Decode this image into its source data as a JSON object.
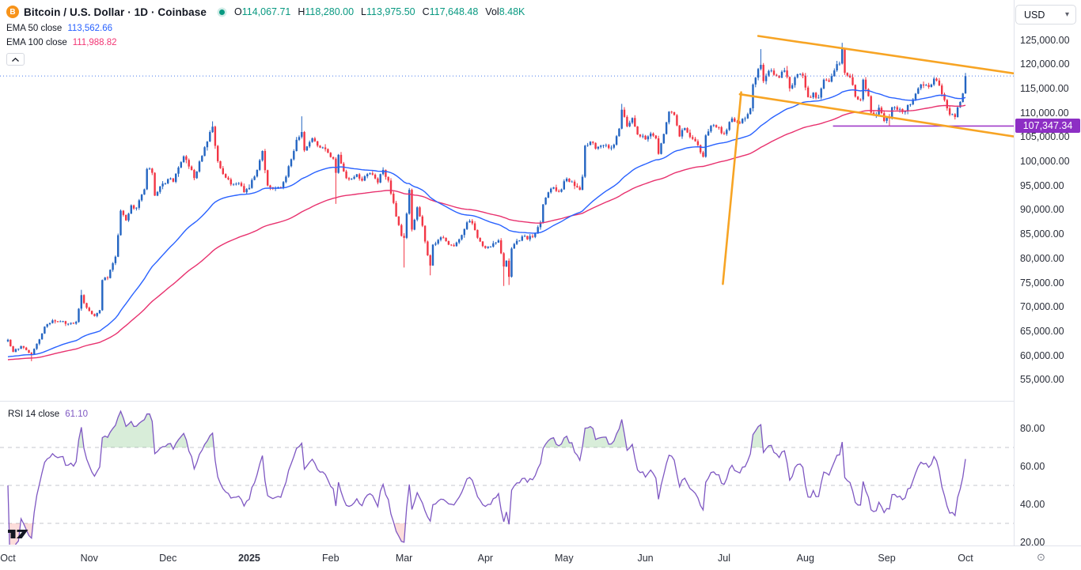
{
  "header": {
    "symbol_icon": "bitcoin-icon",
    "symbol_icon_letter": "B",
    "symbol_title": "Bitcoin / U.S. Dollar · 1D · Coinbase",
    "ohlc": {
      "o_label": "O",
      "o": "114,067.71",
      "h_label": "H",
      "h": "118,280.00",
      "l_label": "L",
      "l": "113,975.50",
      "c_label": "C",
      "c": "117,648.48",
      "vol_label": "Vol",
      "vol": "8.48K"
    },
    "currency": "USD"
  },
  "indicators_legend": {
    "ema50": {
      "label": "EMA 50 close",
      "value": "113,562.66"
    },
    "ema100": {
      "label": "EMA 100 close",
      "value": "111,988.82"
    },
    "rsi": {
      "label": "RSI 14 close",
      "value": "61.10"
    }
  },
  "chart_data": {
    "type": "candlestick",
    "title": "Bitcoin / U.S. Dollar",
    "exchange": "Coinbase",
    "timeframe": "1D",
    "x_start": "2024-10-01",
    "x_end": "2025-10-01",
    "price_axis": {
      "ticks": [
        125000,
        120000,
        115000,
        110000,
        105000,
        100000,
        95000,
        90000,
        85000,
        80000,
        75000,
        70000,
        65000,
        60000,
        55000
      ],
      "visible_range": [
        51000,
        126500
      ]
    },
    "time_axis": {
      "months": [
        {
          "label": "Oct",
          "day": 0
        },
        {
          "label": "Nov",
          "day": 31
        },
        {
          "label": "Dec",
          "day": 61
        },
        {
          "label": "2025",
          "day": 92,
          "bold": true
        },
        {
          "label": "Feb",
          "day": 123
        },
        {
          "label": "Mar",
          "day": 151
        },
        {
          "label": "Apr",
          "day": 182
        },
        {
          "label": "May",
          "day": 212
        },
        {
          "label": "Jun",
          "day": 243
        },
        {
          "label": "Jul",
          "day": 273
        },
        {
          "label": "Aug",
          "day": 304
        },
        {
          "label": "Sep",
          "day": 335
        },
        {
          "label": "Oct",
          "day": 365
        }
      ]
    },
    "last_candle": {
      "open": 114067.71,
      "high": 118280.0,
      "low": 113975.5,
      "close": 117648.48,
      "volume": "8.48K"
    },
    "price_keypoints": [
      [
        0,
        63300
      ],
      [
        2,
        60800
      ],
      [
        5,
        62000
      ],
      [
        9,
        60300
      ],
      [
        11,
        62500
      ],
      [
        14,
        66000
      ],
      [
        17,
        67300
      ],
      [
        20,
        67100
      ],
      [
        23,
        66600
      ],
      [
        26,
        67000
      ],
      [
        28,
        72500
      ],
      [
        30,
        69900
      ],
      [
        33,
        68200
      ],
      [
        35,
        69400
      ],
      [
        36,
        75600
      ],
      [
        38,
        76000
      ],
      [
        41,
        80400
      ],
      [
        43,
        89900
      ],
      [
        45,
        87900
      ],
      [
        47,
        91000
      ],
      [
        49,
        90500
      ],
      [
        52,
        94300
      ],
      [
        53,
        98500
      ],
      [
        55,
        97700
      ],
      [
        56,
        93000
      ],
      [
        58,
        94900
      ],
      [
        61,
        96400
      ],
      [
        63,
        95850
      ],
      [
        65,
        98800
      ],
      [
        67,
        101100
      ],
      [
        69,
        99000
      ],
      [
        71,
        96600
      ],
      [
        74,
        101200
      ],
      [
        77,
        106100
      ],
      [
        78,
        107200
      ],
      [
        80,
        100100
      ],
      [
        82,
        97460
      ],
      [
        85,
        95300
      ],
      [
        88,
        95600
      ],
      [
        90,
        93700
      ],
      [
        92,
        94600
      ],
      [
        95,
        98300
      ],
      [
        97,
        102200
      ],
      [
        99,
        95100
      ],
      [
        101,
        94400
      ],
      [
        104,
        94600
      ],
      [
        106,
        96900
      ],
      [
        108,
        100500
      ],
      [
        110,
        104500
      ],
      [
        112,
        106100
      ],
      [
        113,
        102300
      ],
      [
        116,
        104800
      ],
      [
        118,
        103300
      ],
      [
        121,
        102600
      ],
      [
        124,
        100600
      ],
      [
        125,
        97700
      ],
      [
        126,
        101400
      ],
      [
        129,
        96600
      ],
      [
        131,
        96500
      ],
      [
        133,
        97400
      ],
      [
        135,
        96100
      ],
      [
        138,
        97600
      ],
      [
        141,
        95700
      ],
      [
        143,
        98300
      ],
      [
        145,
        96100
      ],
      [
        147,
        91500
      ],
      [
        148,
        88700
      ],
      [
        150,
        84700
      ],
      [
        151,
        84300
      ],
      [
        153,
        94200
      ],
      [
        154,
        86000
      ],
      [
        156,
        90600
      ],
      [
        158,
        86800
      ],
      [
        160,
        80700
      ],
      [
        161,
        78600
      ],
      [
        162,
        82900
      ],
      [
        164,
        83900
      ],
      [
        166,
        84300
      ],
      [
        168,
        82900
      ],
      [
        170,
        82600
      ],
      [
        172,
        84000
      ],
      [
        174,
        86100
      ],
      [
        175,
        87500
      ],
      [
        177,
        87300
      ],
      [
        179,
        84300
      ],
      [
        181,
        82600
      ],
      [
        183,
        82500
      ],
      [
        185,
        83200
      ],
      [
        187,
        83800
      ],
      [
        189,
        78400
      ],
      [
        190,
        79600
      ],
      [
        191,
        76300
      ],
      [
        192,
        82100
      ],
      [
        194,
        83700
      ],
      [
        196,
        84600
      ],
      [
        198,
        84000
      ],
      [
        201,
        85200
      ],
      [
        203,
        87500
      ],
      [
        204,
        91200
      ],
      [
        206,
        93700
      ],
      [
        208,
        94700
      ],
      [
        210,
        93800
      ],
      [
        213,
        96500
      ],
      [
        215,
        95900
      ],
      [
        218,
        94200
      ],
      [
        219,
        96900
      ],
      [
        220,
        103300
      ],
      [
        222,
        104100
      ],
      [
        224,
        102700
      ],
      [
        227,
        103400
      ],
      [
        229,
        102800
      ],
      [
        231,
        103500
      ],
      [
        233,
        106800
      ],
      [
        234,
        110700
      ],
      [
        236,
        107300
      ],
      [
        238,
        109000
      ],
      [
        240,
        105600
      ],
      [
        243,
        104600
      ],
      [
        245,
        105800
      ],
      [
        247,
        104800
      ],
      [
        248,
        101600
      ],
      [
        250,
        105700
      ],
      [
        252,
        110300
      ],
      [
        254,
        109600
      ],
      [
        256,
        105200
      ],
      [
        258,
        106900
      ],
      [
        261,
        104700
      ],
      [
        263,
        103400
      ],
      [
        265,
        101000
      ],
      [
        266,
        105400
      ],
      [
        268,
        107400
      ],
      [
        271,
        107100
      ],
      [
        273,
        105700
      ],
      [
        276,
        108900
      ],
      [
        278,
        108100
      ],
      [
        281,
        108900
      ],
      [
        283,
        111000
      ],
      [
        284,
        115900
      ],
      [
        286,
        119100
      ],
      [
        287,
        119950
      ],
      [
        288,
        116600
      ],
      [
        290,
        118700
      ],
      [
        292,
        117900
      ],
      [
        294,
        117300
      ],
      [
        296,
        118800
      ],
      [
        298,
        115100
      ],
      [
        300,
        117400
      ],
      [
        301,
        118000
      ],
      [
        303,
        117700
      ],
      [
        305,
        113300
      ],
      [
        307,
        114200
      ],
      [
        309,
        113200
      ],
      [
        311,
        116900
      ],
      [
        313,
        116500
      ],
      [
        315,
        118800
      ],
      [
        317,
        120200
      ],
      [
        318,
        123300
      ],
      [
        319,
        118300
      ],
      [
        321,
        117400
      ],
      [
        323,
        113400
      ],
      [
        325,
        112800
      ],
      [
        326,
        116900
      ],
      [
        328,
        113500
      ],
      [
        329,
        110100
      ],
      [
        331,
        109700
      ],
      [
        332,
        111100
      ],
      [
        334,
        108400
      ],
      [
        336,
        108900
      ],
      [
        337,
        111200
      ],
      [
        339,
        110700
      ],
      [
        341,
        110200
      ],
      [
        344,
        111800
      ],
      [
        346,
        114000
      ],
      [
        348,
        115900
      ],
      [
        351,
        115400
      ],
      [
        353,
        117100
      ],
      [
        355,
        115700
      ],
      [
        357,
        112700
      ],
      [
        359,
        109700
      ],
      [
        361,
        109200
      ],
      [
        363,
        112300
      ],
      [
        364,
        114067.71
      ],
      [
        365,
        117648.48
      ]
    ],
    "wick_events": [
      {
        "d": 9,
        "lo": 58900
      },
      {
        "d": 28,
        "hi": 73600
      },
      {
        "d": 78,
        "hi": 108300
      },
      {
        "d": 112,
        "hi": 109350
      },
      {
        "d": 125,
        "lo": 91300
      },
      {
        "d": 151,
        "lo": 78200
      },
      {
        "d": 161,
        "lo": 76600
      },
      {
        "d": 189,
        "lo": 74400
      },
      {
        "d": 191,
        "lo": 74600
      },
      {
        "d": 234,
        "hi": 111900
      },
      {
        "d": 287,
        "hi": 123200
      },
      {
        "d": 318,
        "hi": 124500
      },
      {
        "d": 336,
        "lo": 107350
      },
      {
        "d": 361,
        "lo": 108700
      }
    ],
    "series": [
      {
        "name": "EMA 50",
        "kind": "ema",
        "period": 50,
        "color": "#2962ff",
        "last_value": 113562.66,
        "seed": 59800
      },
      {
        "name": "EMA 100",
        "kind": "ema",
        "period": 100,
        "color": "#e8316e",
        "last_value": 111988.82,
        "seed": 59200
      }
    ],
    "rsi": {
      "period": 14,
      "last_value": 61.1,
      "color": "#7e57c2",
      "axis_ticks": [
        80,
        60,
        40,
        20
      ],
      "dashed_levels": [
        70,
        50,
        30
      ],
      "overbought_fill": "rgba(76,175,80,0.22)",
      "oversold_fill": "rgba(244,67,54,0.18)",
      "range": [
        15,
        88
      ]
    },
    "overlays": {
      "trendlines": [
        {
          "name": "channel-upper",
          "d1": 286,
          "p1": 125900,
          "d2": 385,
          "p2": 118200
        },
        {
          "name": "channel-lower",
          "d1": 279,
          "p1": 113900,
          "d2": 385,
          "p2": 105200
        },
        {
          "name": "impulse-line",
          "d1": 272.5,
          "p1": 74800,
          "d2": 279.5,
          "p2": 114300
        }
      ],
      "trendline_color": "#f7a424",
      "horizontal_line": {
        "price": 107347.34,
        "label": "107,347.34",
        "start_day": 314.5,
        "line_color": "#a03cc9",
        "badge_color": "#8d2fc4"
      },
      "close_price_line": {
        "price": 117648.48,
        "color": "#4a7bec",
        "style": "dotted"
      }
    },
    "colors": {
      "up": "#2465c2",
      "down": "#f23645",
      "background": "#ffffff",
      "axis_text": "#2a2e39",
      "grid_sep": "#e0e3eb"
    }
  },
  "footer": {
    "logo": "tradingview-logo",
    "scales_icon": "scales-settings-icon"
  }
}
